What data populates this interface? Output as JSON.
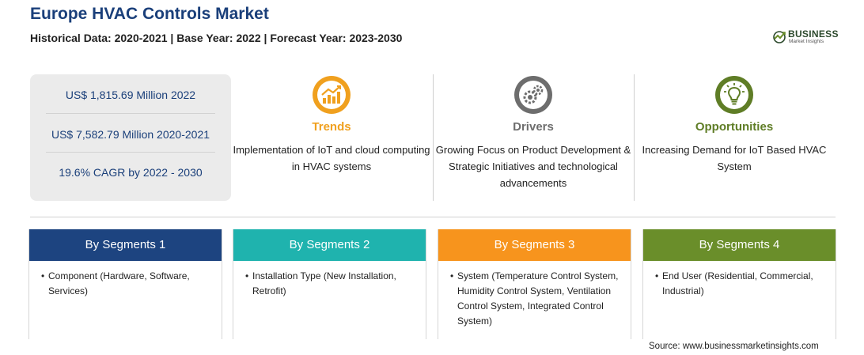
{
  "header": {
    "title": "Europe HVAC Controls Market",
    "subtitle": "Historical Data: 2020-2021 | Base Year: 2022 | Forecast Year: 2023-2030"
  },
  "logo": {
    "brand": "BUSINESS",
    "tagline": "Market Insights"
  },
  "stats": [
    {
      "text": "US$ 1,815.69 Million 2022"
    },
    {
      "text": "US$ 7,582.79 Million 2020-2021"
    },
    {
      "text": "19.6% CAGR by 2022 - 2030"
    }
  ],
  "highlights": [
    {
      "icon": "trend-chart-icon",
      "heading": "Trends",
      "color": "#f0a01e",
      "description": "Implementation of IoT and cloud computing in HVAC systems"
    },
    {
      "icon": "gears-icon",
      "heading": "Drivers",
      "color": "#6d6d6d",
      "description": "Growing Focus on Product Development & Strategic Initiatives and technological advancements"
    },
    {
      "icon": "lightbulb-icon",
      "heading": "Opportunities",
      "color": "#5f7d26",
      "description": "Increasing Demand for IoT Based HVAC System"
    }
  ],
  "segments": [
    {
      "title": "By Segments 1",
      "color": "#1d4480",
      "items": [
        "Component (Hardware, Software, Services)"
      ]
    },
    {
      "title": "By Segments 2",
      "color": "#1fb3ae",
      "items": [
        "Installation Type (New Installation, Retrofit)"
      ]
    },
    {
      "title": "By Segments 3",
      "color": "#f7941d",
      "items": [
        "System (Temperature Control System, Humidity Control System, Ventilation Control System, Integrated Control System)"
      ]
    },
    {
      "title": "By Segments 4",
      "color": "#6a8e2a",
      "items": [
        "End User (Residential, Commercial, Industrial)"
      ]
    }
  ],
  "footer": {
    "source": "Source: www.businessmarketinsights.com"
  }
}
